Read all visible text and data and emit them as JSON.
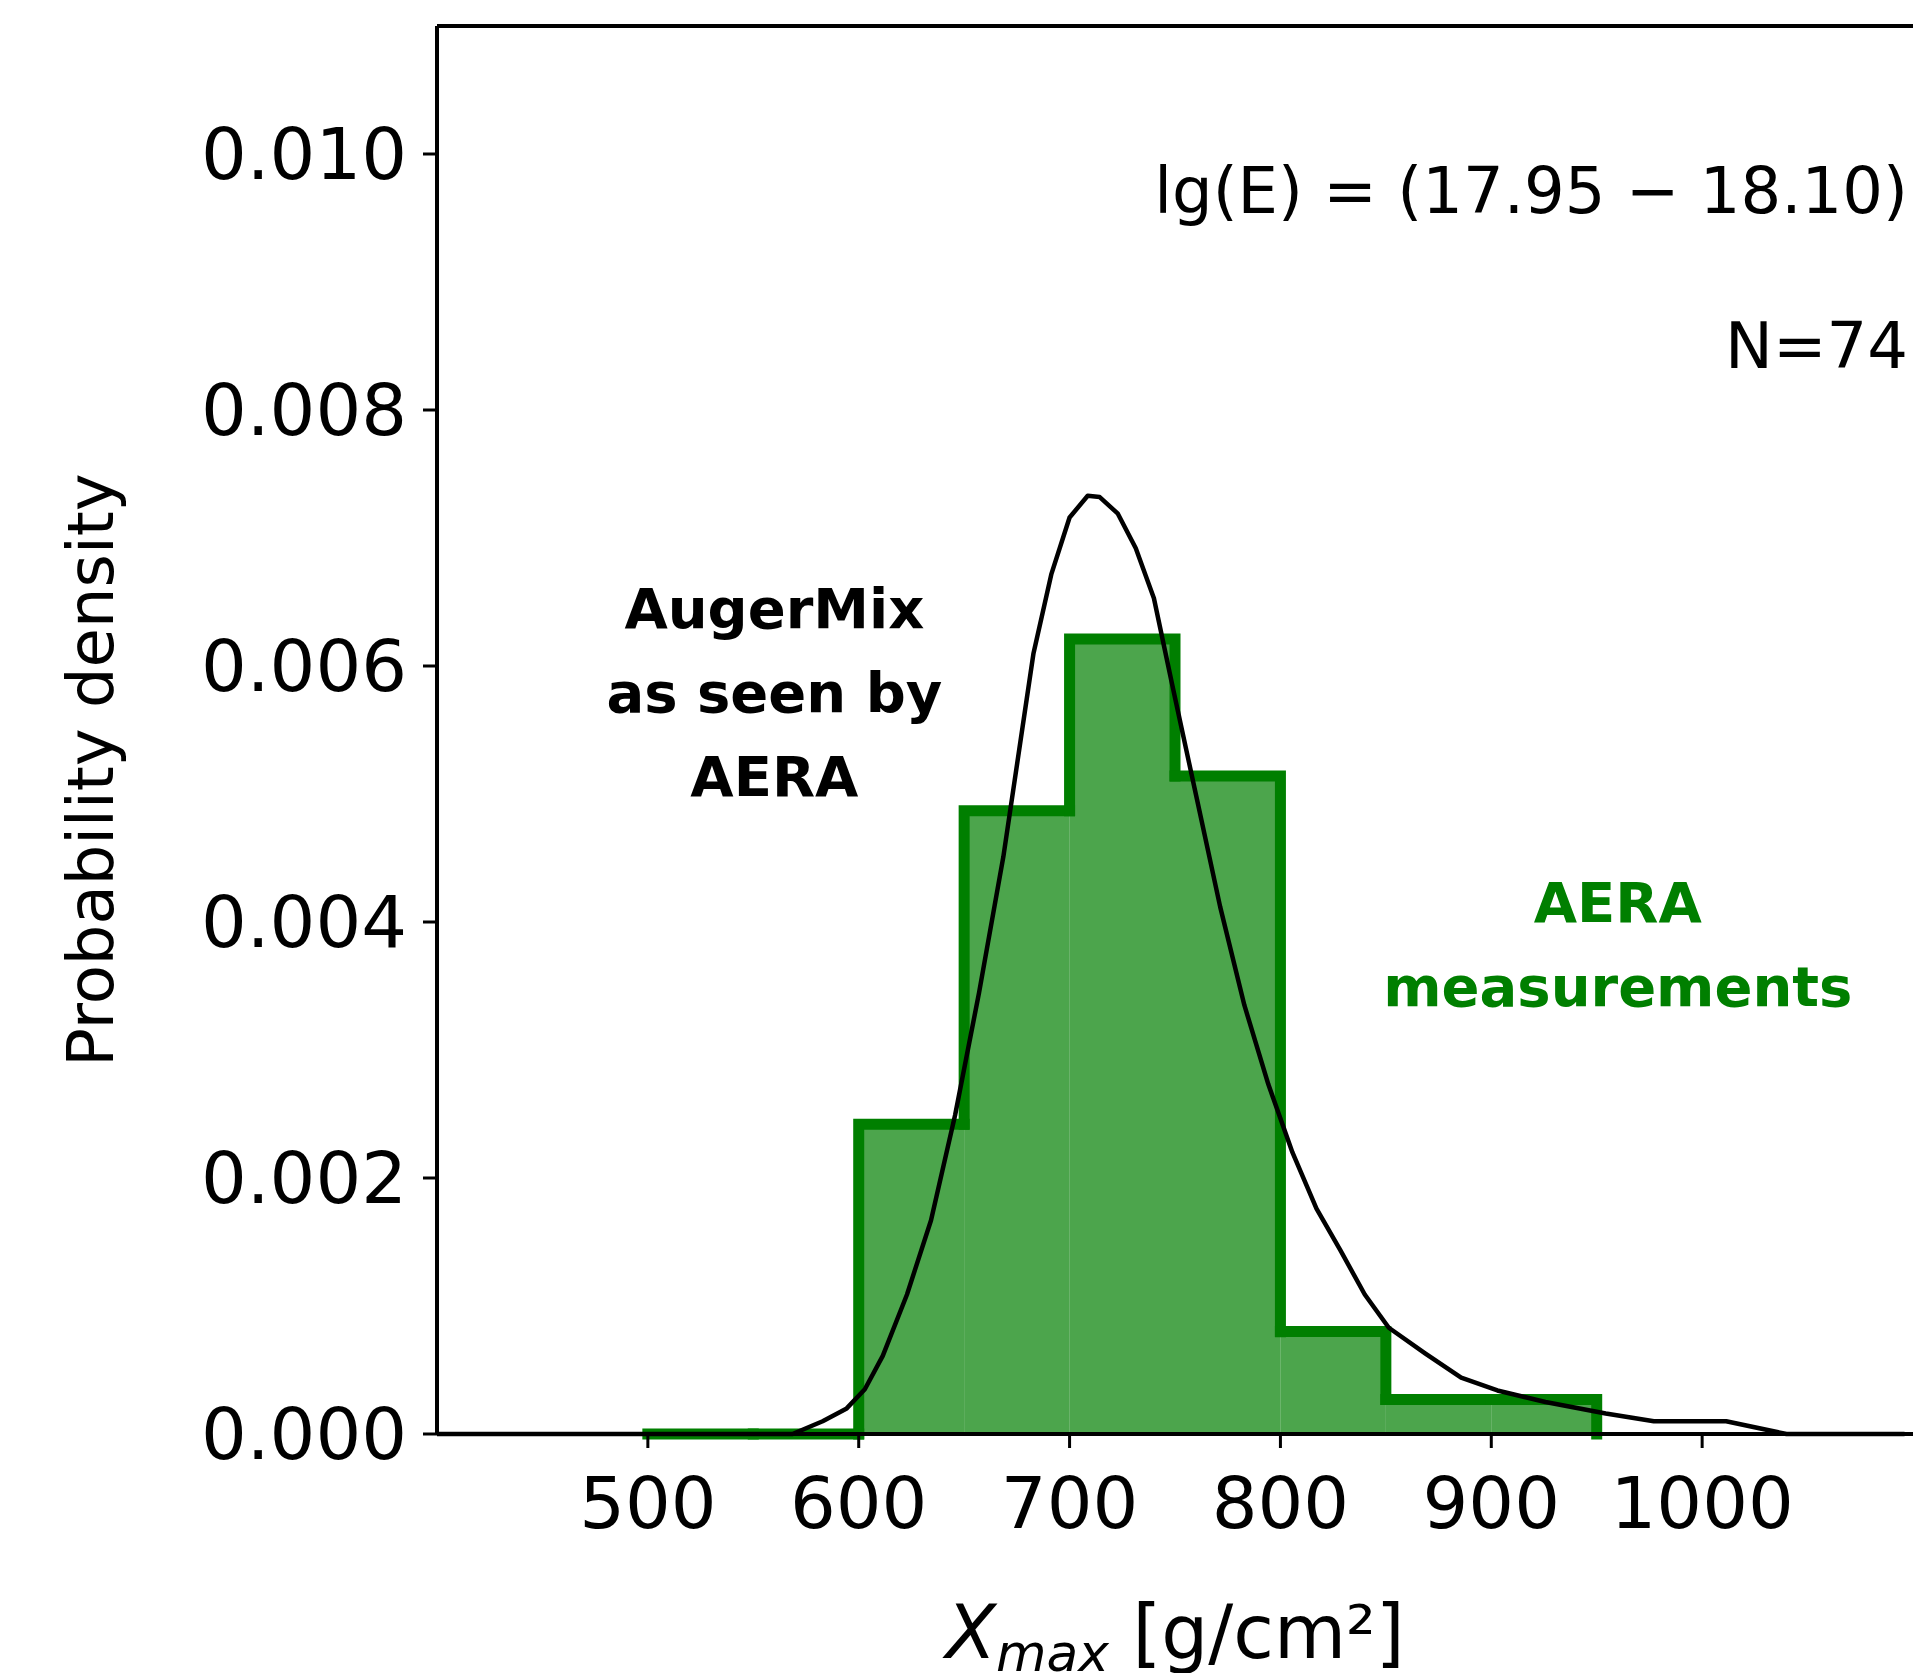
{
  "chart_data": {
    "type": "histogram",
    "xlabel": "X$_{max}$ [g/cm²]",
    "ylabel": "Probability density",
    "xlim": [
      400,
      1100
    ],
    "ylim": [
      0,
      0.011
    ],
    "xticks": [
      500,
      600,
      700,
      800,
      900,
      1000
    ],
    "yticks": [
      {
        "value": 0,
        "label": "0.000"
      },
      {
        "value": 0.002,
        "label": "0.002"
      },
      {
        "value": 0.004,
        "label": "0.004"
      },
      {
        "value": 0.006,
        "label": "0.006"
      },
      {
        "value": 0.008,
        "label": "0.008"
      },
      {
        "value": 0.01,
        "label": "0.010"
      }
    ],
    "annotations": [
      "lg(E) = (17.95 − 18.10)",
      "N=74"
    ],
    "series": [
      {
        "type": "histogram",
        "name": "AERA measurements",
        "color": "#007f00",
        "bins": [
          500,
          550,
          600,
          650,
          700,
          750,
          800,
          850,
          900,
          950
        ],
        "values": [
          0,
          0,
          0.00242,
          0.00487,
          0.00621,
          0.00514,
          0.0008,
          0.00027,
          0.00027
        ]
      },
      {
        "type": "line",
        "name": "AugerMix as seen by AERA",
        "color": "#000000",
        "x": [
          400,
          542.9,
          568.6,
          582.9,
          594.3,
          602.9,
          611.4,
          622.9,
          634.3,
          645.7,
          657.1,
          668.6,
          682.9,
          691.4,
          700,
          708.6,
          714.3,
          722.9,
          731.4,
          740,
          748.6,
          760,
          771.4,
          782.9,
          794.3,
          805.7,
          817.1,
          828.6,
          840,
          851.4,
          868.6,
          885.7,
          902.9,
          925.7,
          954.3,
          977.1,
          1011.4,
          1040,
          1096
        ],
        "values": [
          0,
          0,
          0,
          0.0001,
          0.0002,
          0.00035,
          0.00061,
          0.00109,
          0.00167,
          0.00249,
          0.00345,
          0.00451,
          0.0061,
          0.00672,
          0.00716,
          0.00733,
          0.00732,
          0.00719,
          0.00692,
          0.00653,
          0.00586,
          0.00499,
          0.00412,
          0.00335,
          0.00273,
          0.0022,
          0.00176,
          0.00143,
          0.00109,
          0.00083,
          0.00063,
          0.00044,
          0.00034,
          0.00025,
          0.00016,
          0.0001,
          0.0001,
          0,
          0
        ]
      }
    ]
  }
}
